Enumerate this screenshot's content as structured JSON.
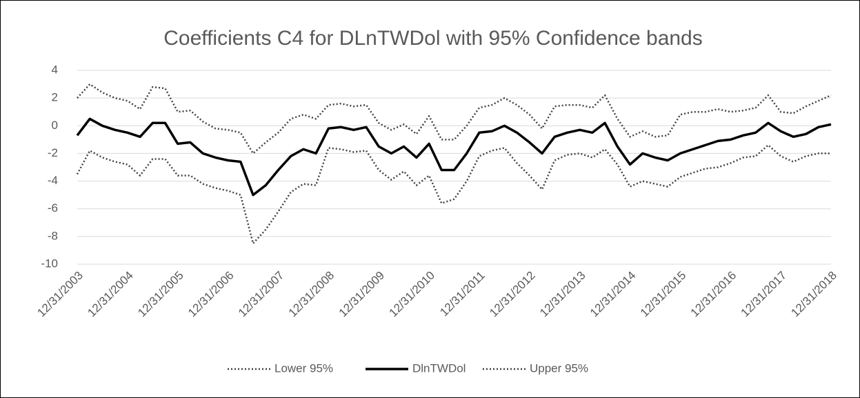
{
  "chart_data": {
    "type": "line",
    "title": "Coefficients C4 for DLnTWDol with 95% Confidence bands",
    "categories": [
      "12/31/2003",
      null,
      null,
      null,
      "12/31/2004",
      null,
      null,
      null,
      "12/31/2005",
      null,
      null,
      null,
      "12/31/2006",
      null,
      null,
      null,
      "12/31/2007",
      null,
      null,
      null,
      "12/31/2008",
      null,
      null,
      null,
      "12/31/2009",
      null,
      null,
      null,
      "12/31/2010",
      null,
      null,
      null,
      "12/31/2011",
      null,
      null,
      null,
      "12/31/2012",
      null,
      null,
      null,
      "12/31/2013",
      null,
      null,
      null,
      "12/31/2014",
      null,
      null,
      null,
      "12/31/2015",
      null,
      null,
      null,
      "12/31/2016",
      null,
      null,
      null,
      "12/31/2017",
      null,
      null,
      null,
      "12/31/2018"
    ],
    "series": [
      {
        "name": "Lower 95%",
        "color": "#404040",
        "style": "dotted",
        "values": [
          -3.5,
          -1.8,
          -2.3,
          -2.6,
          -2.8,
          -3.6,
          -2.4,
          -2.4,
          -3.6,
          -3.6,
          -4.2,
          -4.5,
          -4.7,
          -5.0,
          -8.5,
          -7.5,
          -6.2,
          -4.8,
          -4.2,
          -4.3,
          -1.6,
          -1.7,
          -1.9,
          -1.8,
          -3.2,
          -3.9,
          -3.3,
          -4.3,
          -3.6,
          -5.6,
          -5.3,
          -4.0,
          -2.2,
          -1.8,
          -1.6,
          -2.7,
          -3.6,
          -4.6,
          -2.5,
          -2.1,
          -2.0,
          -2.3,
          -1.7,
          -2.8,
          -4.4,
          -4.0,
          -4.2,
          -4.4,
          -3.7,
          -3.4,
          -3.1,
          -3.0,
          -2.7,
          -2.3,
          -2.2,
          -1.4,
          -2.2,
          -2.6,
          -2.2,
          -2.0,
          -2.0
        ]
      },
      {
        "name": "DlnTWDol",
        "color": "#000000",
        "style": "solid",
        "values": [
          -0.7,
          0.5,
          0,
          -0.3,
          -0.5,
          -0.8,
          0.2,
          0.2,
          -1.3,
          -1.2,
          -2.0,
          -2.3,
          -2.5,
          -2.6,
          -5.0,
          -4.3,
          -3.2,
          -2.2,
          -1.7,
          -2.0,
          -0.2,
          -0.1,
          -0.3,
          -0.1,
          -1.5,
          -2.0,
          -1.5,
          -2.3,
          -1.3,
          -3.2,
          -3.2,
          -2.0,
          -0.5,
          -0.4,
          0,
          -0.5,
          -1.2,
          -2.0,
          -0.8,
          -0.5,
          -0.3,
          -0.5,
          0.2,
          -1.5,
          -2.8,
          -2.0,
          -2.3,
          -2.5,
          -2.0,
          -1.7,
          -1.4,
          -1.1,
          -1.0,
          -0.7,
          -0.5,
          0.2,
          -0.4,
          -0.8,
          -0.6,
          -0.1,
          0.1
        ]
      },
      {
        "name": "Upper 95%",
        "color": "#404040",
        "style": "dotted",
        "values": [
          2.0,
          3.0,
          2.4,
          2.0,
          1.8,
          1.2,
          2.8,
          2.7,
          1.0,
          1.1,
          0.3,
          -0.2,
          -0.3,
          -0.5,
          -2.0,
          -1.2,
          -0.5,
          0.5,
          0.8,
          0.5,
          1.5,
          1.6,
          1.4,
          1.5,
          0.2,
          -0.3,
          0.1,
          -0.6,
          0.7,
          -1.0,
          -1.0,
          0.0,
          1.3,
          1.5,
          2.0,
          1.5,
          0.8,
          -0.2,
          1.4,
          1.5,
          1.5,
          1.3,
          2.2,
          0.5,
          -0.8,
          -0.4,
          -0.8,
          -0.7,
          0.8,
          1.0,
          1.0,
          1.2,
          1.0,
          1.1,
          1.3,
          2.2,
          1.0,
          0.9,
          1.4,
          1.8,
          2.2
        ]
      }
    ],
    "ylim": [
      -10,
      4
    ],
    "yticks": [
      -10,
      -8,
      -6,
      -4,
      -2,
      0,
      2,
      4
    ],
    "grid": true,
    "legend": "bottom"
  }
}
